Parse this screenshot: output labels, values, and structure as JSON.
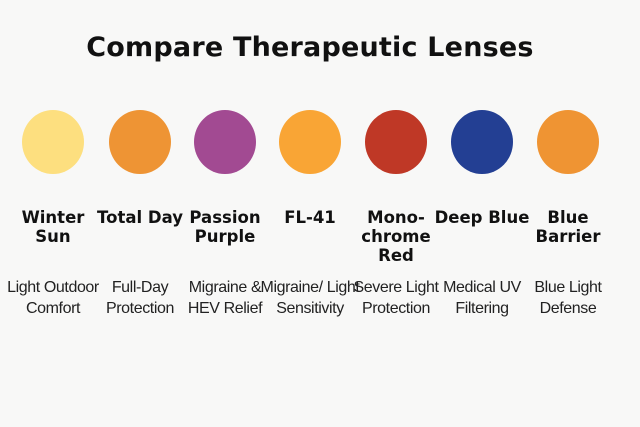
{
  "title": "Compare Therapeutic Lenses",
  "lenses": [
    {
      "name": "Winter Sun",
      "description": "Light Outdoor Comfort",
      "color": "#FDDF7F"
    },
    {
      "name": "Total Day",
      "description": "Full-Day Protection",
      "color": "#EE9434"
    },
    {
      "name": "Passion Purple",
      "description": "Migraine & HEV Relief",
      "color": "#A24A92"
    },
    {
      "name": "FL-41",
      "description": "Migraine/ Light Sensitivity",
      "color": "#F9A535"
    },
    {
      "name": "Mono-chrome Red",
      "description": "Severe Light Protection",
      "color": "#BF3826"
    },
    {
      "name": "Deep Blue",
      "description": "Medical UV Filtering",
      "color": "#233F93"
    },
    {
      "name": "Blue Barrier",
      "description": "Blue Light Defense",
      "color": "#EF9433"
    }
  ]
}
